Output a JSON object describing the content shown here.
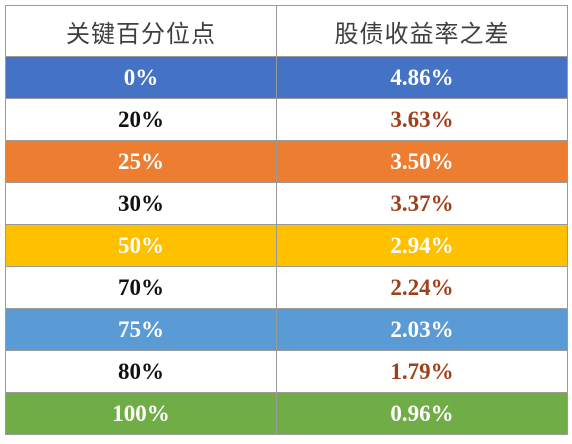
{
  "table": {
    "headers": [
      "关键百分位点",
      "股债收益率之差"
    ],
    "rows": [
      {
        "percentile": "0%",
        "spread": "4.86%",
        "highlight": "#4472c4"
      },
      {
        "percentile": "20%",
        "spread": "3.63%",
        "highlight": null
      },
      {
        "percentile": "25%",
        "spread": "3.50%",
        "highlight": "#ed7d31"
      },
      {
        "percentile": "30%",
        "spread": "3.37%",
        "highlight": null
      },
      {
        "percentile": "50%",
        "spread": "2.94%",
        "highlight": "#ffc000"
      },
      {
        "percentile": "70%",
        "spread": "2.24%",
        "highlight": null
      },
      {
        "percentile": "75%",
        "spread": "2.03%",
        "highlight": "#5b9bd5"
      },
      {
        "percentile": "80%",
        "spread": "1.79%",
        "highlight": null
      },
      {
        "percentile": "100%",
        "spread": "0.96%",
        "highlight": "#70ad47"
      }
    ],
    "colors": {
      "plain_value_text": "#a0401a",
      "plain_percentile_text": "#111111",
      "highlight_text": "#ffffff",
      "border": "#9a9a9a"
    }
  }
}
